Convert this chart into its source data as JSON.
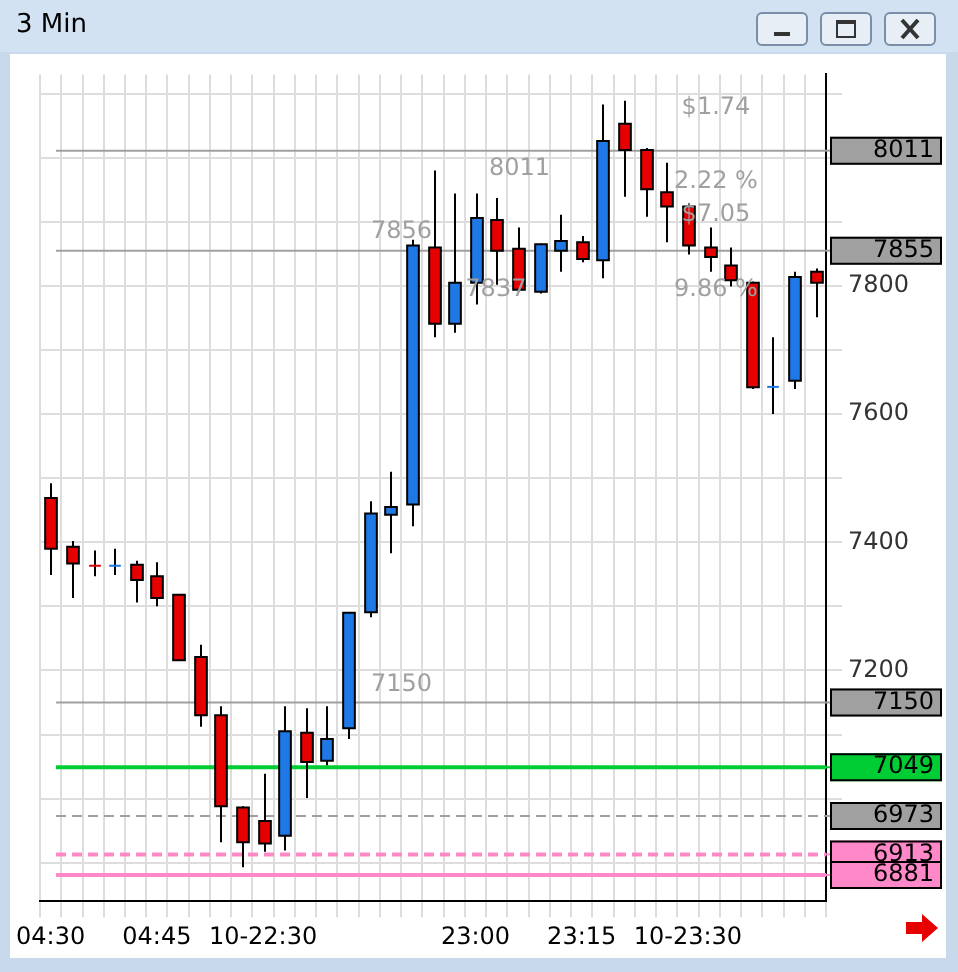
{
  "chart_data": {
    "type": "candlestick",
    "title": "3 Min",
    "categories": [
      "04:30",
      null,
      null,
      null,
      null,
      "04:45",
      null,
      null,
      null,
      null,
      "10-22:30",
      null,
      null,
      null,
      null,
      null,
      null,
      null,
      null,
      null,
      "23:00",
      null,
      null,
      null,
      null,
      "23:15",
      null,
      null,
      null,
      null,
      "10-23:30",
      null,
      null,
      null,
      null,
      null,
      null
    ],
    "ohlc": [
      [
        7469,
        7492,
        7349,
        7390
      ],
      [
        7393,
        7402,
        7313,
        7367
      ],
      [
        7365,
        7387,
        7347,
        7365
      ],
      [
        7365,
        7390,
        7349,
        7365
      ],
      [
        7365,
        7371,
        7306,
        7341
      ],
      [
        7347,
        7369,
        7300,
        7313
      ],
      [
        7318,
        7318,
        7216,
        7216
      ],
      [
        7221,
        7240,
        7112,
        7130
      ],
      [
        7130,
        7144,
        6932,
        6988
      ],
      [
        6986,
        6988,
        6893,
        6932
      ],
      [
        6965,
        7039,
        6917,
        6930
      ],
      [
        6942,
        7144,
        6919,
        7105
      ],
      [
        7103,
        7141,
        7001,
        7057
      ],
      [
        7059,
        7144,
        7052,
        7093
      ],
      [
        7110,
        7290,
        7093,
        7290
      ],
      [
        7291,
        7464,
        7283,
        7445
      ],
      [
        7443,
        7510,
        7383,
        7455
      ],
      [
        7459,
        7872,
        7425,
        7863
      ],
      [
        7860,
        7980,
        7720,
        7741
      ],
      [
        7741,
        7944,
        7727,
        7805
      ],
      [
        7805,
        7944,
        7771,
        7906
      ],
      [
        7903,
        7937,
        7802,
        7855
      ],
      [
        7858,
        7891,
        7791,
        7794
      ],
      [
        7791,
        7866,
        7788,
        7865
      ],
      [
        7855,
        7911,
        7822,
        7870
      ],
      [
        7868,
        7878,
        7837,
        7842
      ],
      [
        7840,
        8083,
        7812,
        8026
      ],
      [
        8053,
        8089,
        7939,
        8012
      ],
      [
        8012,
        8015,
        7908,
        7951
      ],
      [
        7946,
        7992,
        7868,
        7924
      ],
      [
        7924,
        7929,
        7849,
        7863
      ],
      [
        7860,
        7891,
        7822,
        7845
      ],
      [
        7832,
        7860,
        7799,
        7809
      ],
      [
        7805,
        7807,
        7639,
        7642
      ],
      [
        7644,
        7720,
        7600,
        7644
      ],
      [
        7652,
        7822,
        7639,
        7814
      ],
      [
        7822,
        7827,
        7751,
        7805
      ]
    ],
    "colors": [
      "#e60000",
      "#e60000",
      "#e60000",
      "#1e78e6",
      "#e60000",
      "#e60000",
      "#e60000",
      "#e60000",
      "#e60000",
      "#e60000",
      "#e60000",
      "#1e78e6",
      "#e60000",
      "#1e78e6",
      "#1e78e6",
      "#1e78e6",
      "#1e78e6",
      "#1e78e6",
      "#e60000",
      "#1e78e6",
      "#1e78e6",
      "#e60000",
      "#e60000",
      "#1e78e6",
      "#1e78e6",
      "#e60000",
      "#1e78e6",
      "#e60000",
      "#e60000",
      "#e60000",
      "#e60000",
      "#e60000",
      "#e60000",
      "#e60000",
      "#1e78e6",
      "#1e78e6",
      "#e60000"
    ],
    "ylim": [
      6840,
      8130
    ],
    "yticks": [
      {
        "value": 6900,
        "label": null
      },
      {
        "value": 7000,
        "label": null
      },
      {
        "value": 7100,
        "label": null
      },
      7200,
      {
        "value": 7300,
        "label": null
      },
      7400,
      {
        "value": 7500,
        "label": null
      },
      7600,
      {
        "value": 7700,
        "label": null
      },
      7800,
      {
        "value": 7900,
        "label": null
      },
      {
        "value": 8000,
        "label": null
      },
      {
        "value": 8100,
        "label": null
      }
    ],
    "grid": true,
    "legend": false,
    "ref_lines": [
      {
        "axis": "y",
        "value": 8011,
        "label": "8011",
        "color": "#a0a0a0",
        "line_style": "solid"
      },
      {
        "axis": "y",
        "value": 7855,
        "label": "7855",
        "color": "#a0a0a0",
        "line_style": "solid"
      },
      {
        "axis": "y",
        "value": 7150,
        "label": "7150",
        "color": "#a0a0a0",
        "line_style": "solid"
      },
      {
        "axis": "y",
        "value": 7049,
        "label": "7049",
        "color": "#00cc33",
        "line_style": "solid"
      },
      {
        "axis": "y",
        "value": 6973,
        "label": "6973",
        "color": "#a0a0a0",
        "line_style": "dashed"
      },
      {
        "axis": "y",
        "value": 6913,
        "label": "6913",
        "color": "#ff88c8",
        "line_style": "dashed"
      },
      {
        "axis": "y",
        "value": 6881,
        "label": "6881",
        "color": "#ff88c8",
        "line_style": "solid"
      }
    ],
    "annotations": [
      "$1.74",
      "2.22 %",
      "$7.05",
      "9.86 %",
      {
        "text": "7856",
        "y": 7856
      },
      {
        "text": "7150",
        "y": 7150
      },
      {
        "text": "8011",
        "y": 8011
      },
      "7837"
    ]
  }
}
